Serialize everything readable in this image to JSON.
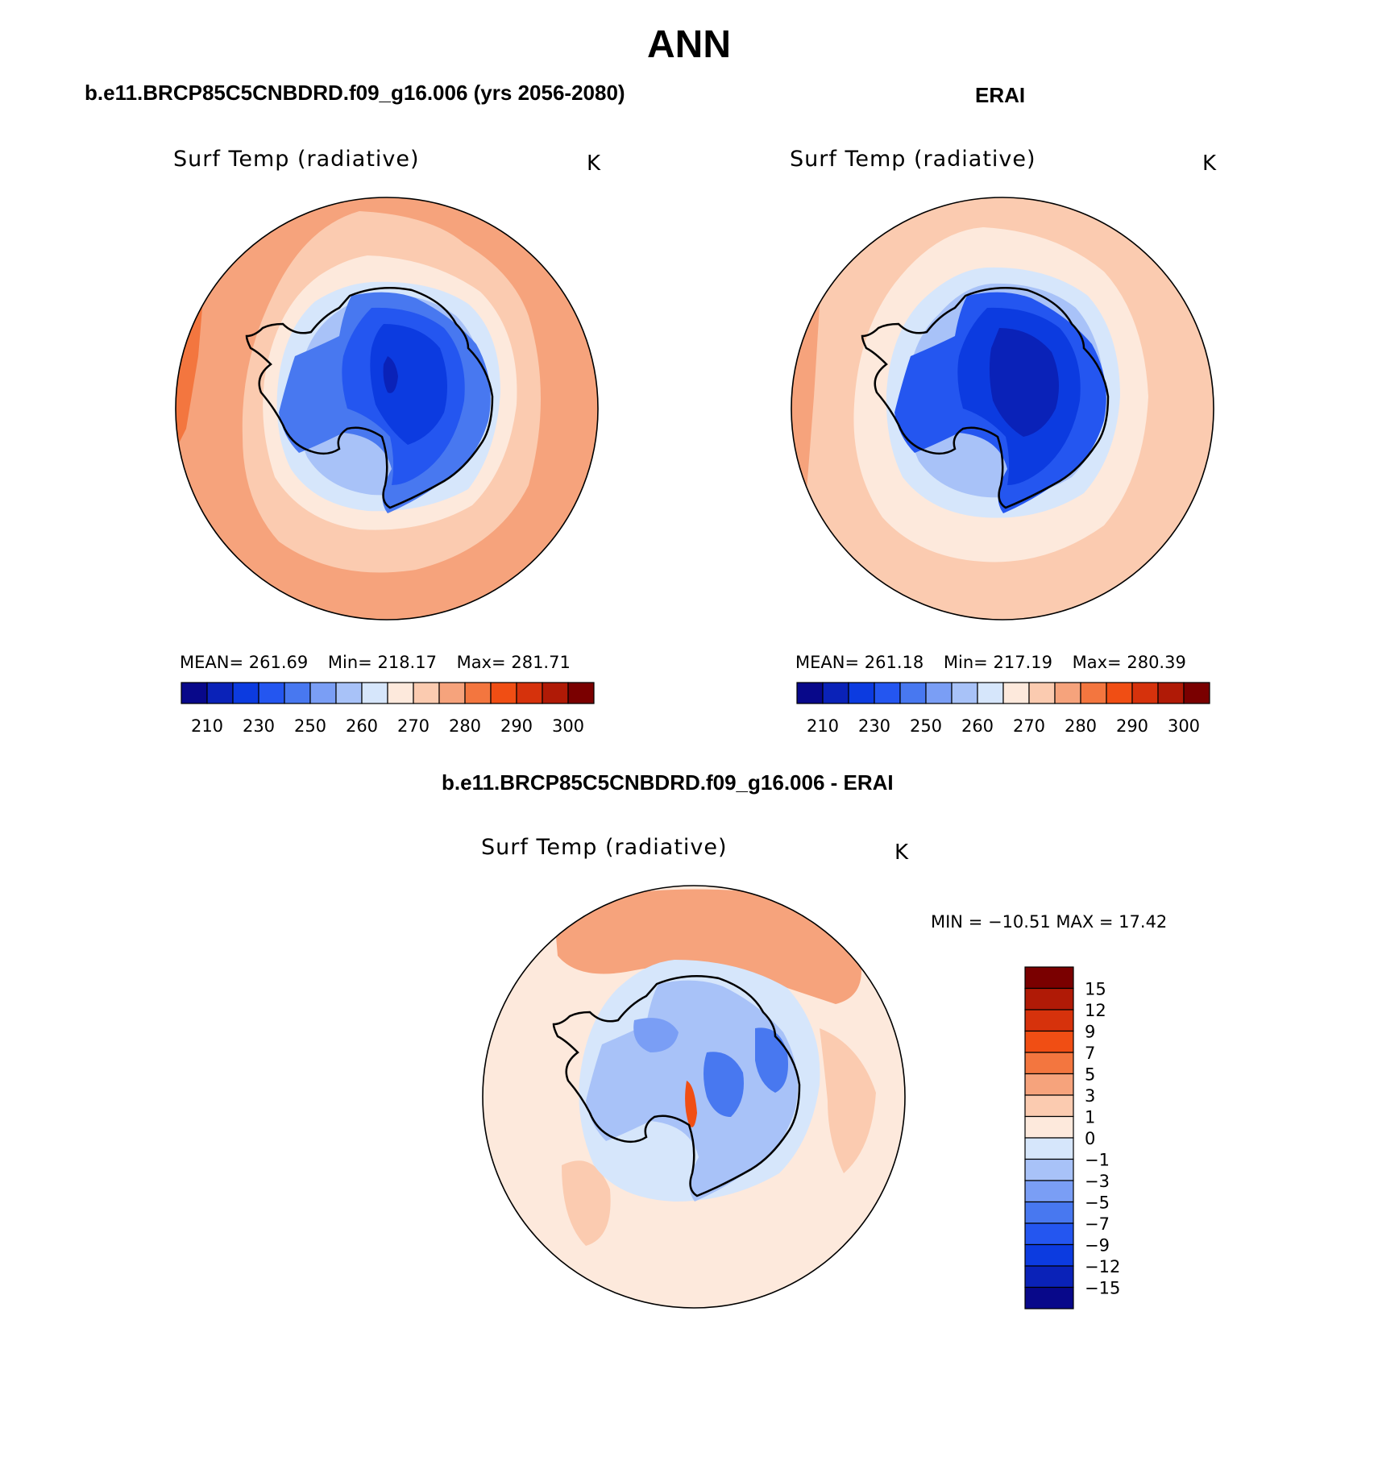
{
  "page": {
    "title": "ANN"
  },
  "panels": [
    {
      "run_title": "b.e11.BRCP85C5CNBDRD.f09_g16.006 (yrs 2056-2080)",
      "variable": "Surf Temp (radiative)",
      "units": "K",
      "stats": {
        "mean_label": "MEAN=",
        "mean": "261.69",
        "min_label": "Min=",
        "min": "218.17",
        "max_label": "Max=",
        "max": "281.71"
      },
      "colorbar_ticks": [
        "210",
        "230",
        "250",
        "260",
        "270",
        "280",
        "290",
        "300"
      ]
    },
    {
      "run_title": "ERAI",
      "variable": "Surf Temp (radiative)",
      "units": "K",
      "stats": {
        "mean_label": "MEAN=",
        "mean": "261.18",
        "min_label": "Min=",
        "min": "217.19",
        "max_label": "Max=",
        "max": "280.39"
      },
      "colorbar_ticks": [
        "210",
        "230",
        "250",
        "260",
        "270",
        "280",
        "290",
        "300"
      ]
    },
    {
      "run_title": "b.e11.BRCP85C5CNBDRD.f09_g16.006 - ERAI",
      "variable": "Surf Temp (radiative)",
      "units": "K",
      "stats": {
        "text": "MIN = −10.51 MAX =   17.42"
      },
      "colorbar_ticks": [
        "15",
        "12",
        "9",
        "7",
        "5",
        "3",
        "1",
        "0",
        "−1",
        "−3",
        "−5",
        "−7",
        "−9",
        "−12",
        "−15"
      ]
    }
  ],
  "colormap": {
    "absolute": [
      "#08088a",
      "#0a22b8",
      "#0c3be0",
      "#2456f0",
      "#4878f0",
      "#7a9ef5",
      "#a8c2f8",
      "#d6e6fb",
      "#fde9dc",
      "#fbcbb0",
      "#f6a37c",
      "#f3763f",
      "#f04e14",
      "#d6320c",
      "#b01a06",
      "#7a0000"
    ],
    "difference": [
      "#7a0000",
      "#b01a06",
      "#d6320c",
      "#f04e14",
      "#f3763f",
      "#f6a37c",
      "#fbcbb0",
      "#fde9dc",
      "#d6e6fb",
      "#a8c2f8",
      "#7a9ef5",
      "#4878f0",
      "#2456f0",
      "#0c3be0",
      "#0a22b8",
      "#08088a"
    ]
  }
}
